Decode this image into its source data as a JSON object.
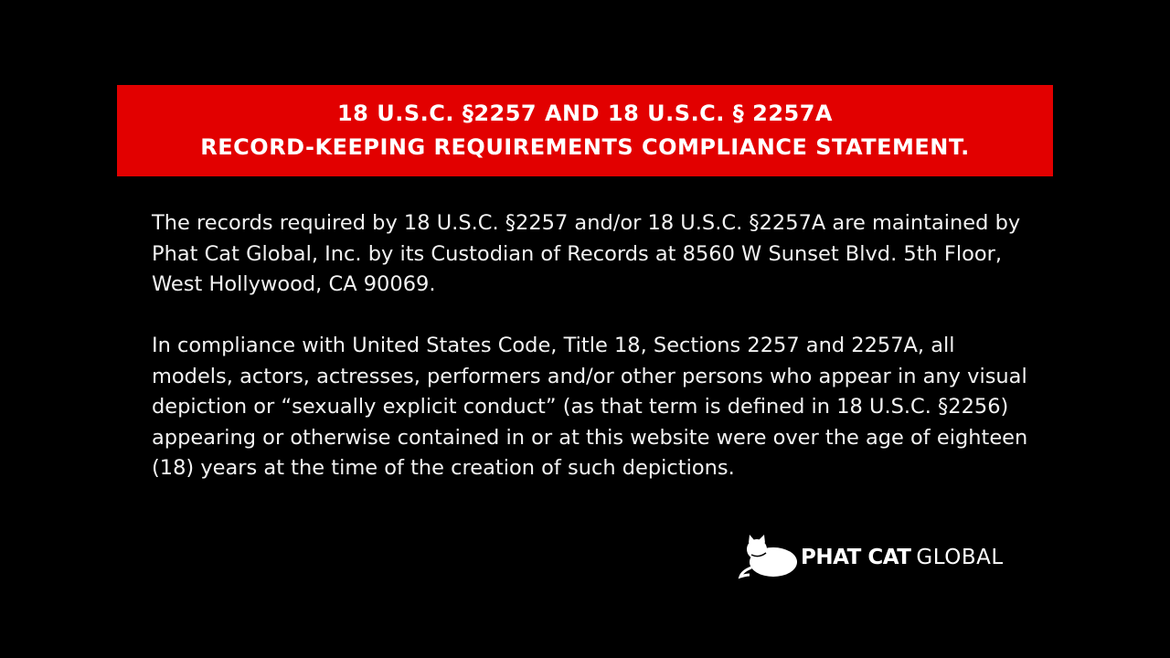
{
  "banner": {
    "line1": "18 U.S.C. §2257 AND 18 U.S.C. § 2257A",
    "line2": "RECORD-KEEPING REQUIREMENTS COMPLIANCE STATEMENT.",
    "color": "#e20000"
  },
  "paragraphs": [
    "The records required by 18 U.S.C. §2257 and/or 18 U.S.C. §2257A are maintained by Phat Cat Global, Inc. by its Custodian of Records at 8560 W Sunset Blvd. 5th Floor, West Hollywood, CA 90069.",
    "In compliance with United States Code, Title 18, Sections 2257 and 2257A, all models, actors, actresses, performers and/or other persons who appear in any visual depiction or “sexually explicit conduct” (as that term is defined in 18 U.S.C. §2256) appearing or otherwise contained in or at this website were over the age of eighteen (18) years at the time of the creation of such depictions."
  ],
  "logo": {
    "bold": "PHAT CAT",
    "light": "GLOBAL",
    "icon": "cat-icon"
  }
}
